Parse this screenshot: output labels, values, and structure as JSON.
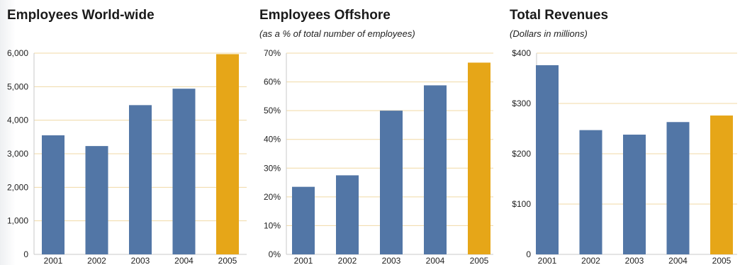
{
  "colors": {
    "bar": "#5276a6",
    "highlight": "#e6a618",
    "grid": "#f0d9a4",
    "axis": "#c9c9c9"
  },
  "chart_data": [
    {
      "type": "bar",
      "title": "Employees World-wide",
      "subtitle": "",
      "categories": [
        "2001",
        "2002",
        "2003",
        "2004",
        "2005"
      ],
      "values": [
        3550,
        3230,
        4450,
        4940,
        5970
      ],
      "highlight_index": 4,
      "ylim": [
        0,
        6000
      ],
      "yticks": [
        0,
        1000,
        2000,
        3000,
        4000,
        5000,
        6000
      ],
      "ytick_labels": [
        "0",
        "1,000",
        "2,000",
        "3,000",
        "4,000",
        "5,000",
        "6,000"
      ],
      "grid": true
    },
    {
      "type": "bar",
      "title": "Employees Offshore",
      "subtitle": "(as a % of total number of employees)",
      "categories": [
        "2001",
        "2002",
        "2003",
        "2004",
        "2005"
      ],
      "values": [
        23.5,
        27.5,
        50,
        58.8,
        66.7
      ],
      "highlight_index": 4,
      "ylim": [
        0,
        70
      ],
      "yticks": [
        0,
        10,
        20,
        30,
        40,
        50,
        60,
        70
      ],
      "ytick_labels": [
        "0%",
        "10%",
        "20%",
        "30%",
        "40%",
        "50%",
        "60%",
        "70%"
      ],
      "grid": true
    },
    {
      "type": "bar",
      "title": "Total Revenues",
      "subtitle": "(Dollars in millions)",
      "categories": [
        "2001",
        "2002",
        "2003",
        "2004",
        "2005"
      ],
      "values": [
        376,
        247,
        238,
        263,
        276
      ],
      "highlight_index": 4,
      "ylim": [
        0,
        400
      ],
      "yticks": [
        0,
        100,
        200,
        300,
        400
      ],
      "ytick_labels": [
        "0",
        "$100",
        "$200",
        "$300",
        "$400"
      ],
      "grid": true
    }
  ]
}
